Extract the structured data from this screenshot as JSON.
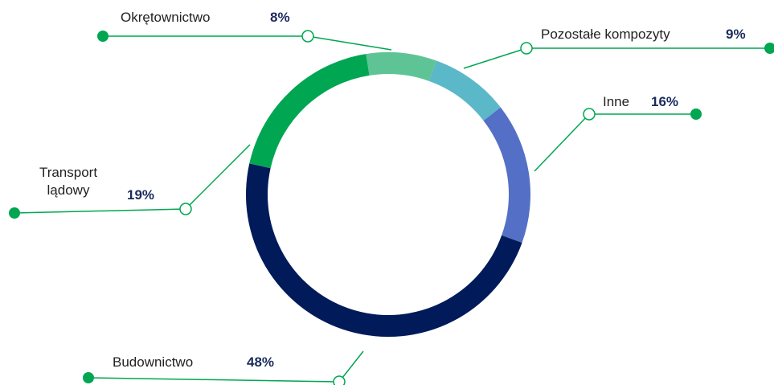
{
  "chart_data": {
    "type": "donut",
    "categories": [
      "Okrętownictwo",
      "Pozostałe kompozyty",
      "Inne",
      "Budownictwo",
      "Transport lądowy"
    ],
    "values": [
      8,
      9,
      16,
      48,
      19
    ],
    "value_labels": [
      "8%",
      "9%",
      "16%",
      "48%",
      "19%"
    ],
    "colors": [
      "#5fc495",
      "#5bb8c8",
      "#5470c6",
      "#001a5a",
      "#00a651"
    ]
  }
}
